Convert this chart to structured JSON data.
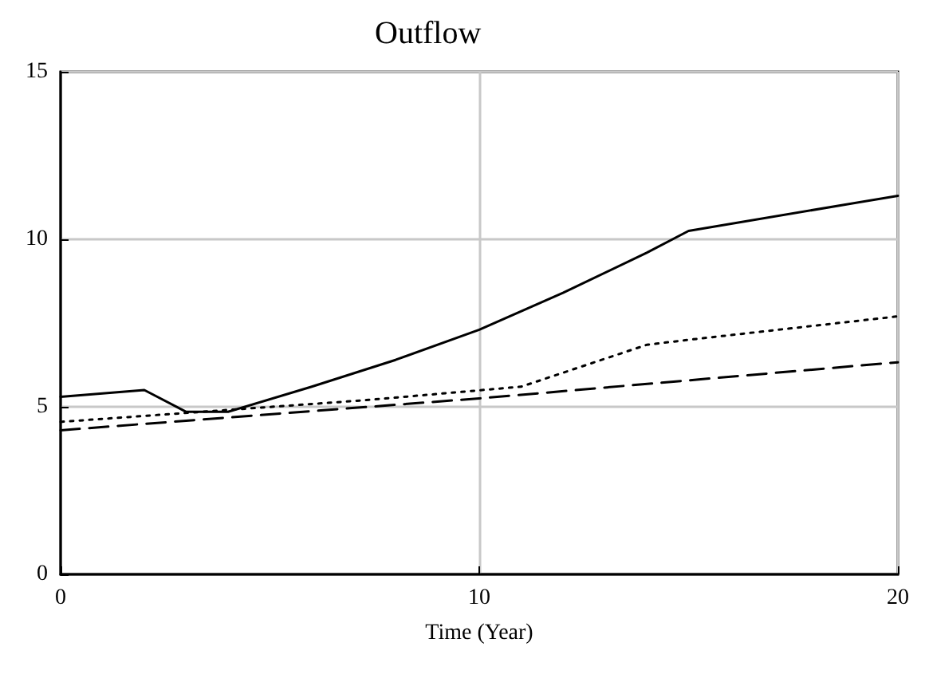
{
  "chart_data": {
    "type": "line",
    "title": "Outflow",
    "xlabel": "Time (Year)",
    "xlim": [
      0,
      20
    ],
    "xticks": [
      0,
      10,
      20
    ],
    "ylim": [
      0,
      15
    ],
    "yticks": [
      0,
      5,
      10,
      15
    ],
    "grid": true,
    "marker": "none",
    "series": [
      {
        "color": "#000000",
        "line_style": "solid",
        "x": [
          0,
          2,
          3,
          4,
          6,
          8,
          10,
          12,
          14,
          15,
          20
        ],
        "values": [
          5.3,
          5.5,
          4.85,
          4.85,
          5.6,
          6.4,
          7.3,
          8.4,
          9.6,
          10.25,
          11.3
        ]
      },
      {
        "color": "#000000",
        "line_style": "dotted",
        "x": [
          0,
          7.3,
          11,
          14,
          15,
          20
        ],
        "values": [
          4.55,
          5.2,
          5.6,
          6.85,
          7.0,
          7.7
        ]
      },
      {
        "color": "#000000",
        "line_style": "dashed",
        "x": [
          0,
          10,
          20
        ],
        "values": [
          4.3,
          5.25,
          6.33
        ]
      }
    ]
  }
}
